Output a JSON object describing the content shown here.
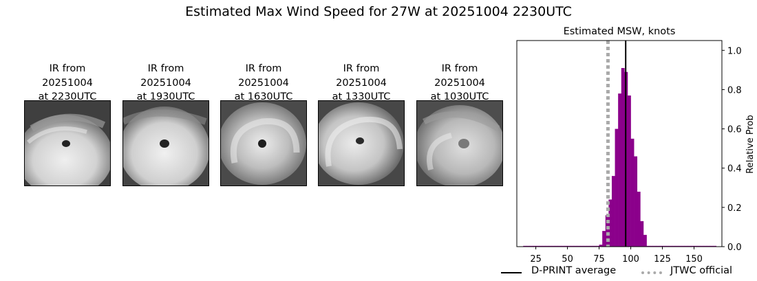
{
  "title": "Estimated Max Wind Speed for 27W at 20251004 2230UTC",
  "panels": [
    {
      "line1": "IR from",
      "line2": "20251004",
      "line3": "at 2230UTC"
    },
    {
      "line1": "IR from",
      "line2": "20251004",
      "line3": "at 1930UTC"
    },
    {
      "line1": "IR from",
      "line2": "20251004",
      "line3": "at 1630UTC"
    },
    {
      "line1": "IR from",
      "line2": "20251004",
      "line3": "at 1330UTC"
    },
    {
      "line1": "IR from",
      "line2": "20251004",
      "line3": "at 1030UTC"
    }
  ],
  "chart_data": {
    "type": "bar",
    "title": "Estimated MSW, knots",
    "xlabel": "",
    "ylabel": "Relative Prob",
    "xlim": [
      10,
      172
    ],
    "ylim": [
      0,
      1.05
    ],
    "xticks": [
      25,
      50,
      75,
      100,
      125,
      150
    ],
    "yticks": [
      0.0,
      0.2,
      0.4,
      0.6,
      0.8,
      1.0
    ],
    "ytick_labels": [
      "0.0",
      "0.2",
      "0.4",
      "0.6",
      "0.8",
      "1.0"
    ],
    "y_axis_side": "right",
    "bar_color": "#8b008b",
    "bin_width": 2.5,
    "bins": [
      {
        "x": 15,
        "y": 0.0
      },
      {
        "x": 17.5,
        "y": 0.0
      },
      {
        "x": 20,
        "y": 0.0
      },
      {
        "x": 22.5,
        "y": 0.0
      },
      {
        "x": 25,
        "y": 0.0
      },
      {
        "x": 27.5,
        "y": 0.0
      },
      {
        "x": 30,
        "y": 0.0
      },
      {
        "x": 32.5,
        "y": 0.0
      },
      {
        "x": 35,
        "y": 0.0
      },
      {
        "x": 37.5,
        "y": 0.0
      },
      {
        "x": 40,
        "y": 0.0
      },
      {
        "x": 42.5,
        "y": 0.0
      },
      {
        "x": 45,
        "y": 0.0
      },
      {
        "x": 47.5,
        "y": 0.0
      },
      {
        "x": 50,
        "y": 0.0
      },
      {
        "x": 52.5,
        "y": 0.0
      },
      {
        "x": 55,
        "y": 0.0
      },
      {
        "x": 57.5,
        "y": 0.0
      },
      {
        "x": 60,
        "y": 0.0
      },
      {
        "x": 62.5,
        "y": 0.0
      },
      {
        "x": 65,
        "y": 0.0
      },
      {
        "x": 67.5,
        "y": 0.0
      },
      {
        "x": 70,
        "y": 0.0
      },
      {
        "x": 72.5,
        "y": 0.0
      },
      {
        "x": 75,
        "y": 0.01
      },
      {
        "x": 77.5,
        "y": 0.08
      },
      {
        "x": 80,
        "y": 0.16
      },
      {
        "x": 82.5,
        "y": 0.24
      },
      {
        "x": 85,
        "y": 0.36
      },
      {
        "x": 87.5,
        "y": 0.6
      },
      {
        "x": 90,
        "y": 0.78
      },
      {
        "x": 92.5,
        "y": 0.91
      },
      {
        "x": 95,
        "y": 0.89
      },
      {
        "x": 97.5,
        "y": 0.77
      },
      {
        "x": 100,
        "y": 0.55
      },
      {
        "x": 102.5,
        "y": 0.46
      },
      {
        "x": 105,
        "y": 0.28
      },
      {
        "x": 107.5,
        "y": 0.13
      },
      {
        "x": 110,
        "y": 0.06
      },
      {
        "x": 112.5,
        "y": 0.0
      },
      {
        "x": 115,
        "y": 0.0
      },
      {
        "x": 117.5,
        "y": 0.0
      },
      {
        "x": 120,
        "y": 0.0
      },
      {
        "x": 122.5,
        "y": 0.0
      },
      {
        "x": 125,
        "y": 0.0
      },
      {
        "x": 127.5,
        "y": 0.0
      },
      {
        "x": 130,
        "y": 0.0
      },
      {
        "x": 132.5,
        "y": 0.0
      },
      {
        "x": 135,
        "y": 0.0
      },
      {
        "x": 137.5,
        "y": 0.0
      },
      {
        "x": 140,
        "y": 0.0
      },
      {
        "x": 142.5,
        "y": 0.0
      },
      {
        "x": 145,
        "y": 0.0
      },
      {
        "x": 147.5,
        "y": 0.0
      },
      {
        "x": 150,
        "y": 0.0
      },
      {
        "x": 152.5,
        "y": 0.0
      },
      {
        "x": 155,
        "y": 0.0
      },
      {
        "x": 157.5,
        "y": 0.0
      },
      {
        "x": 160,
        "y": 0.0
      },
      {
        "x": 162.5,
        "y": 0.0
      },
      {
        "x": 165,
        "y": 0.0
      }
    ],
    "reference_lines": [
      {
        "name": "D-PRINT average",
        "x": 96,
        "color": "#000000",
        "style": "solid"
      },
      {
        "name": "JTWC official",
        "x": 82,
        "color": "#aaaaaa",
        "style": "dotted"
      }
    ],
    "legend_placement": "bottom-right",
    "grid": false
  }
}
